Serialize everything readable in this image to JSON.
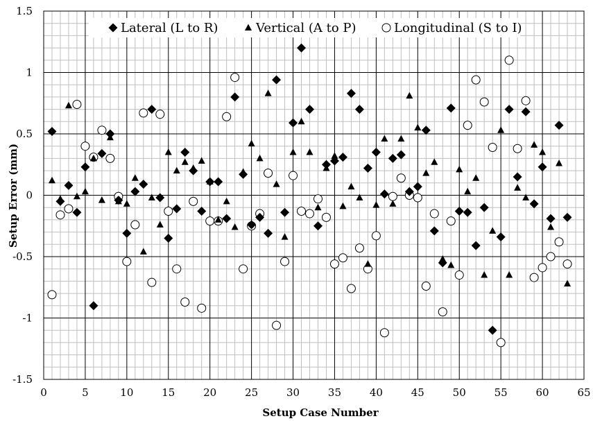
{
  "chart_data": {
    "type": "scatter",
    "title": "",
    "xlabel": "Setup Case Number",
    "ylabel": "Setup Error (mm)",
    "xlim": [
      0,
      65
    ],
    "ylim": [
      -1.5,
      1.5
    ],
    "x_ticks": [
      "0",
      "5",
      "10",
      "15",
      "20",
      "25",
      "30",
      "35",
      "40",
      "45",
      "50",
      "55",
      "60",
      "65"
    ],
    "y_ticks": [
      "-1.5",
      "-1",
      "-0.5",
      "0",
      "0.5",
      "1",
      "1.5"
    ],
    "minor_grid": true,
    "legend_position": "top",
    "x": [
      1,
      2,
      3,
      4,
      5,
      6,
      7,
      8,
      9,
      10,
      11,
      12,
      13,
      14,
      15,
      16,
      17,
      18,
      19,
      20,
      21,
      22,
      23,
      24,
      25,
      26,
      27,
      28,
      29,
      30,
      31,
      32,
      33,
      34,
      35,
      36,
      37,
      38,
      39,
      40,
      41,
      42,
      43,
      44,
      45,
      46,
      47,
      48,
      49,
      50,
      51,
      52,
      53,
      54,
      55,
      56,
      57,
      58,
      59,
      60,
      61,
      62,
      63
    ],
    "series": [
      {
        "name": "Lateral (L to R)",
        "marker": "diamond",
        "values": [
          0.52,
          -0.05,
          0.08,
          -0.14,
          0.23,
          -0.9,
          0.34,
          0.5,
          -0.04,
          -0.31,
          0.03,
          0.09,
          0.7,
          -0.02,
          -0.35,
          -0.11,
          0.35,
          0.2,
          -0.13,
          0.11,
          0.11,
          -0.19,
          0.8,
          0.17,
          -0.24,
          -0.18,
          -0.31,
          0.94,
          -0.14,
          0.59,
          1.2,
          0.7,
          -0.25,
          0.25,
          0.28,
          0.31,
          0.83,
          0.7,
          0.22,
          0.35,
          0.01,
          0.3,
          0.33,
          0.03,
          0.07,
          0.53,
          -0.29,
          -0.55,
          0.71,
          -0.13,
          -0.14,
          -0.41,
          -0.1,
          -1.1,
          -0.34,
          0.7,
          0.15,
          0.68,
          -0.07,
          0.23,
          -0.19,
          0.57,
          -0.18
        ]
      },
      {
        "name": "Vertical (A to P)",
        "marker": "triangle",
        "values": [
          0.12,
          -0.03,
          0.73,
          -0.01,
          0.03,
          0.3,
          -0.04,
          0.47,
          -0.05,
          -0.07,
          0.14,
          -0.46,
          -0.02,
          -0.24,
          0.35,
          0.2,
          0.27,
          0.22,
          0.28,
          0.11,
          -0.2,
          -0.05,
          -0.26,
          0.19,
          0.42,
          0.3,
          0.83,
          0.09,
          -0.34,
          0.35,
          0.6,
          0.35,
          -0.1,
          0.22,
          0.32,
          -0.09,
          0.07,
          -0.02,
          -0.56,
          -0.08,
          0.46,
          -0.07,
          0.46,
          0.81,
          0.55,
          0.18,
          0.27,
          -0.52,
          -0.57,
          0.21,
          0.03,
          0.14,
          -0.65,
          -0.29,
          0.53,
          -0.65,
          0.06,
          -0.02,
          0.41,
          0.35,
          -0.26,
          0.26,
          -0.72
        ]
      },
      {
        "name": "Longitudinal (S to I)",
        "marker": "circle",
        "values": [
          -0.81,
          -0.16,
          -0.11,
          0.74,
          0.4,
          0.31,
          0.53,
          0.3,
          -0.01,
          -0.54,
          -0.24,
          0.67,
          -0.71,
          0.66,
          -0.13,
          -0.6,
          -0.87,
          -0.05,
          -0.92,
          -0.21,
          -0.21,
          0.64,
          0.96,
          -0.6,
          -0.25,
          -0.15,
          0.18,
          -1.06,
          -0.54,
          0.16,
          -0.13,
          -0.15,
          -0.03,
          -0.18,
          -0.56,
          -0.51,
          -0.76,
          -0.43,
          -0.6,
          -0.33,
          -1.12,
          -0.01,
          0.14,
          0.0,
          -0.02,
          -0.74,
          -0.15,
          -0.95,
          -0.21,
          -0.65,
          0.57,
          0.94,
          0.76,
          0.39,
          -1.2,
          1.1,
          0.38,
          0.77,
          -0.67,
          -0.59,
          -0.5,
          -0.38,
          -0.56
        ]
      }
    ]
  }
}
